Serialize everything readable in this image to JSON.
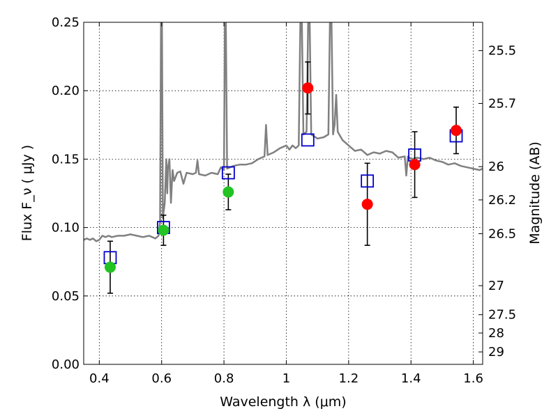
{
  "chart_data": {
    "type": "scatter",
    "xlabel": "Wavelength  λ (μm)",
    "ylabel": "Flux  F_ν  ( μJy )",
    "ylabel_right": "Magnitude (AB)",
    "xlim": [
      0.35,
      1.63
    ],
    "ylim": [
      0,
      0.25
    ],
    "grid": true,
    "x_ticks": [
      {
        "value": 0.4,
        "label": "0.4"
      },
      {
        "value": 0.6,
        "label": "0.6"
      },
      {
        "value": 0.8,
        "label": "0.8"
      },
      {
        "value": 1.0,
        "label": "1"
      },
      {
        "value": 1.2,
        "label": "1.2"
      },
      {
        "value": 1.4,
        "label": "1.4"
      },
      {
        "value": 1.6,
        "label": "1.6"
      }
    ],
    "y_ticks": [
      {
        "value": 0.0,
        "label": "0.00"
      },
      {
        "value": 0.05,
        "label": "0.05"
      },
      {
        "value": 0.1,
        "label": "0.10"
      },
      {
        "value": 0.15,
        "label": "0.15"
      },
      {
        "value": 0.2,
        "label": "0.20"
      },
      {
        "value": 0.25,
        "label": "0.25"
      }
    ],
    "right_ticks": [
      {
        "flux": 0.2293,
        "label": "25.5"
      },
      {
        "flux": 0.1907,
        "label": "25.7"
      },
      {
        "flux": 0.1445,
        "label": "26"
      },
      {
        "flux": 0.1202,
        "label": "26.2"
      },
      {
        "flux": 0.0955,
        "label": "26.5"
      },
      {
        "flux": 0.0575,
        "label": "27"
      },
      {
        "flux": 0.0363,
        "label": "27.5"
      },
      {
        "flux": 0.0229,
        "label": "28"
      },
      {
        "flux": 0.0091,
        "label": "29"
      }
    ],
    "model_spectrum": {
      "color": "#808080",
      "points": [
        [
          0.35,
          0.091
        ],
        [
          0.36,
          0.092
        ],
        [
          0.37,
          0.091
        ],
        [
          0.38,
          0.092
        ],
        [
          0.39,
          0.09
        ],
        [
          0.4,
          0.091
        ],
        [
          0.41,
          0.094
        ],
        [
          0.42,
          0.093
        ],
        [
          0.43,
          0.094
        ],
        [
          0.44,
          0.093
        ],
        [
          0.46,
          0.094
        ],
        [
          0.48,
          0.094
        ],
        [
          0.5,
          0.095
        ],
        [
          0.52,
          0.094
        ],
        [
          0.54,
          0.093
        ],
        [
          0.56,
          0.094
        ],
        [
          0.58,
          0.092
        ],
        [
          0.59,
          0.094
        ],
        [
          0.595,
          0.104
        ],
        [
          0.598,
          0.25
        ],
        [
          0.601,
          0.25
        ],
        [
          0.604,
          0.107
        ],
        [
          0.61,
          0.118
        ],
        [
          0.615,
          0.15
        ],
        [
          0.618,
          0.125
        ],
        [
          0.62,
          0.143
        ],
        [
          0.625,
          0.15
        ],
        [
          0.63,
          0.118
        ],
        [
          0.635,
          0.142
        ],
        [
          0.64,
          0.134
        ],
        [
          0.65,
          0.14
        ],
        [
          0.66,
          0.141
        ],
        [
          0.67,
          0.132
        ],
        [
          0.68,
          0.14
        ],
        [
          0.7,
          0.139
        ],
        [
          0.71,
          0.14
        ],
        [
          0.715,
          0.149
        ],
        [
          0.72,
          0.139
        ],
        [
          0.74,
          0.138
        ],
        [
          0.76,
          0.14
        ],
        [
          0.78,
          0.139
        ],
        [
          0.79,
          0.144
        ],
        [
          0.8,
          0.142
        ],
        [
          0.803,
          0.25
        ],
        [
          0.806,
          0.25
        ],
        [
          0.81,
          0.143
        ],
        [
          0.83,
          0.145
        ],
        [
          0.85,
          0.146
        ],
        [
          0.87,
          0.146
        ],
        [
          0.89,
          0.147
        ],
        [
          0.91,
          0.15
        ],
        [
          0.93,
          0.152
        ],
        [
          0.935,
          0.175
        ],
        [
          0.94,
          0.153
        ],
        [
          0.96,
          0.155
        ],
        [
          0.98,
          0.158
        ],
        [
          1.0,
          0.16
        ],
        [
          1.01,
          0.157
        ],
        [
          1.02,
          0.16
        ],
        [
          1.03,
          0.158
        ],
        [
          1.04,
          0.16
        ],
        [
          1.045,
          0.25
        ],
        [
          1.05,
          0.25
        ],
        [
          1.055,
          0.168
        ],
        [
          1.065,
          0.17
        ],
        [
          1.07,
          0.25
        ],
        [
          1.075,
          0.25
        ],
        [
          1.08,
          0.168
        ],
        [
          1.1,
          0.165
        ],
        [
          1.12,
          0.166
        ],
        [
          1.135,
          0.168
        ],
        [
          1.14,
          0.25
        ],
        [
          1.145,
          0.25
        ],
        [
          1.15,
          0.168
        ],
        [
          1.155,
          0.175
        ],
        [
          1.16,
          0.197
        ],
        [
          1.165,
          0.17
        ],
        [
          1.18,
          0.164
        ],
        [
          1.2,
          0.16
        ],
        [
          1.22,
          0.156
        ],
        [
          1.24,
          0.157
        ],
        [
          1.26,
          0.153
        ],
        [
          1.28,
          0.155
        ],
        [
          1.3,
          0.154
        ],
        [
          1.32,
          0.156
        ],
        [
          1.34,
          0.155
        ],
        [
          1.36,
          0.151
        ],
        [
          1.38,
          0.152
        ],
        [
          1.385,
          0.138
        ],
        [
          1.39,
          0.152
        ],
        [
          1.4,
          0.15
        ],
        [
          1.42,
          0.151
        ],
        [
          1.44,
          0.15
        ],
        [
          1.46,
          0.151
        ],
        [
          1.48,
          0.149
        ],
        [
          1.5,
          0.148
        ],
        [
          1.52,
          0.146
        ],
        [
          1.54,
          0.147
        ],
        [
          1.56,
          0.145
        ],
        [
          1.58,
          0.144
        ],
        [
          1.6,
          0.143
        ],
        [
          1.62,
          0.142
        ],
        [
          1.63,
          0.143
        ]
      ]
    },
    "model_photometry": {
      "marker": "open-square",
      "color": "#0000cc",
      "points": [
        [
          0.435,
          0.078
        ],
        [
          0.606,
          0.1
        ],
        [
          0.814,
          0.14
        ],
        [
          1.069,
          0.164
        ],
        [
          1.26,
          0.134
        ],
        [
          1.412,
          0.153
        ],
        [
          1.545,
          0.167
        ]
      ]
    },
    "observed_photometry": {
      "marker": "filled-circle",
      "points": [
        {
          "x": 0.435,
          "y": 0.071,
          "err": 0.019,
          "color": "#22c322"
        },
        {
          "x": 0.606,
          "y": 0.098,
          "err": 0.011,
          "color": "#22c322"
        },
        {
          "x": 0.814,
          "y": 0.126,
          "err": 0.013,
          "color": "#22c322"
        },
        {
          "x": 1.069,
          "y": 0.202,
          "err": 0.019,
          "color": "#ff0000"
        },
        {
          "x": 1.26,
          "y": 0.117,
          "err": 0.03,
          "color": "#ff0000"
        },
        {
          "x": 1.412,
          "y": 0.146,
          "err": 0.024,
          "color": "#ff0000"
        },
        {
          "x": 1.545,
          "y": 0.171,
          "err": 0.017,
          "color": "#ff0000"
        }
      ]
    }
  }
}
